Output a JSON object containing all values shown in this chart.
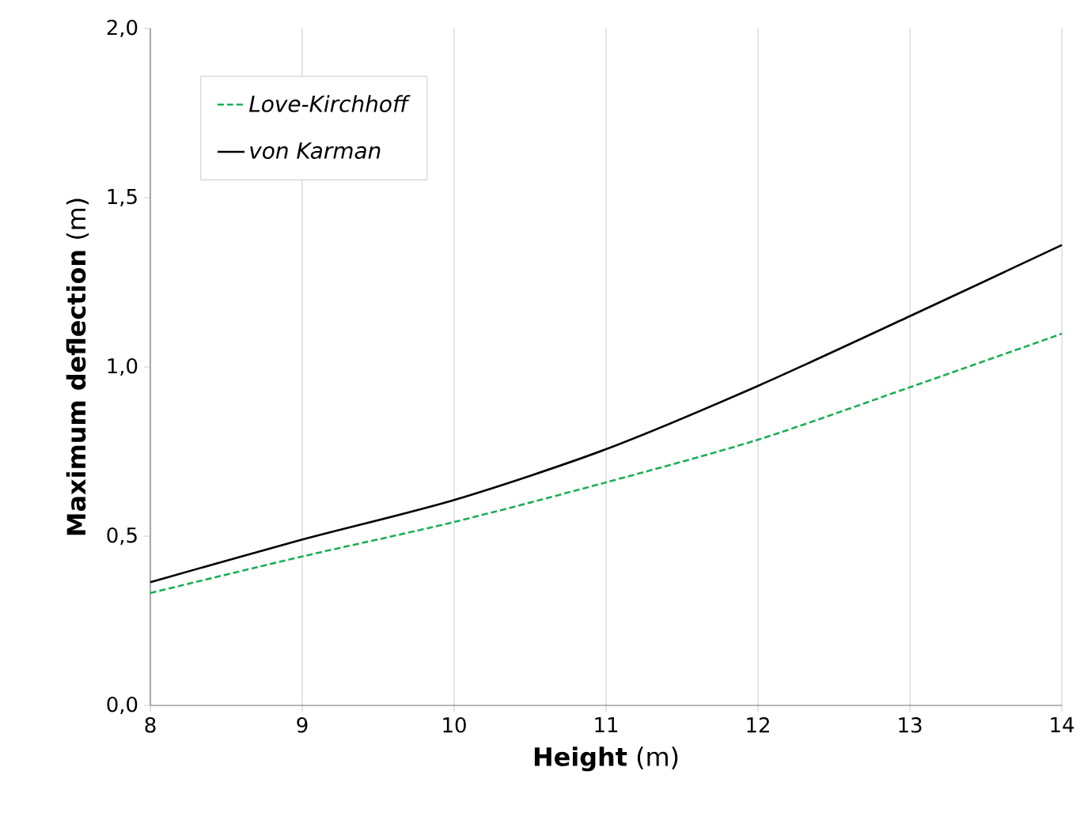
{
  "chart_data": {
    "type": "line",
    "xlabel": "**Height** (m)",
    "ylabel": "**Maximum deflection** (m)",
    "xlim": [
      8,
      14
    ],
    "xticks": [
      8,
      9,
      10,
      11,
      12,
      13,
      14
    ],
    "ylim": [
      0,
      2
    ],
    "yticks": [
      {
        "value": 0,
        "label": "0,0"
      },
      {
        "value": 0.5,
        "label": "0,5"
      },
      {
        "value": 1,
        "label": "1,0"
      },
      {
        "value": 1.5,
        "label": "1,5"
      },
      {
        "value": 2,
        "label": "2,0"
      }
    ],
    "x": [
      8,
      9,
      10,
      11,
      12,
      13,
      14
    ],
    "series": [
      {
        "name": "Love-Kirchhoff",
        "color": "#1aaf54",
        "line_style": "dashed",
        "values": [
          0.332,
          0.44,
          0.542,
          0.659,
          0.785,
          0.94,
          1.098
        ]
      },
      {
        "name": "von Karman",
        "color": "#000000",
        "line_style": "solid",
        "values": [
          0.364,
          0.49,
          0.607,
          0.757,
          0.944,
          1.15,
          1.36
        ]
      }
    ],
    "grid": "x",
    "legend": "top left",
    "marker": "none"
  }
}
